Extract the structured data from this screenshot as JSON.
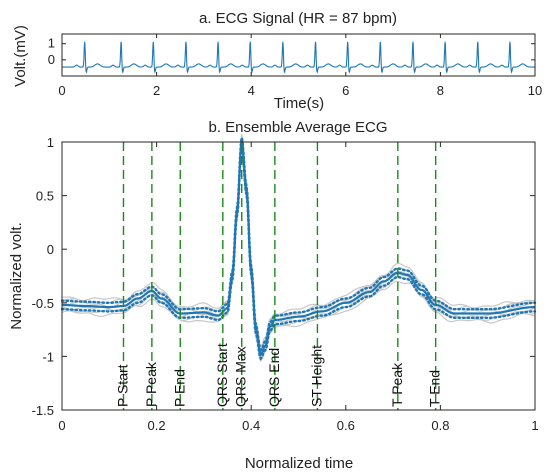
{
  "chart_data": [
    {
      "type": "line",
      "title": "a. ECG Signal (HR = 87 bpm)",
      "xlabel": "Time(s)",
      "ylabel": "Volt.(mV)",
      "xlim": [
        0,
        10
      ],
      "ylim": [
        -1,
        1.6
      ],
      "xticks": [
        "0",
        "2",
        "4",
        "6",
        "8",
        "10"
      ],
      "yticks": [
        "0",
        "1"
      ],
      "x_tick_values": [
        0,
        2,
        4,
        6,
        8,
        10
      ],
      "y_tick_values": [
        0,
        1
      ],
      "series": [
        {
          "color": "#1f77b4",
          "baseline_mV": -0.45,
          "r_peak_mV": 1.15,
          "r_peak_times_s": [
            0.48,
            1.25,
            1.93,
            2.62,
            3.3,
            3.98,
            4.67,
            5.36,
            6.04,
            6.73,
            7.42,
            8.1,
            8.79,
            9.47
          ]
        }
      ]
    },
    {
      "type": "line",
      "title": "b. Ensemble Average ECG",
      "xlabel": "Normalized time",
      "ylabel": "Normalized volt.",
      "xlim": [
        0,
        1
      ],
      "ylim": [
        -1.5,
        1
      ],
      "xticks": [
        "0",
        "0.2",
        "0.4",
        "0.6",
        "0.8",
        "1"
      ],
      "yticks": [
        "-1.5",
        "-1",
        "-0.5",
        "0",
        "0.5",
        "1"
      ],
      "x_tick_values": [
        0,
        0.2,
        0.4,
        0.6,
        0.8,
        1
      ],
      "y_tick_values": [
        -1.5,
        -1,
        -0.5,
        0,
        0.5,
        1
      ],
      "series": [
        {
          "color": "#1f77b4",
          "band_color": "#c8c8c8",
          "x": [
            0,
            0.05,
            0.1,
            0.13,
            0.16,
            0.19,
            0.21,
            0.25,
            0.3,
            0.33,
            0.35,
            0.36,
            0.37,
            0.38,
            0.39,
            0.4,
            0.41,
            0.42,
            0.43,
            0.44,
            0.45,
            0.5,
            0.55,
            0.6,
            0.65,
            0.68,
            0.71,
            0.73,
            0.76,
            0.79,
            0.83,
            0.9,
            1
          ],
          "y": [
            -0.52,
            -0.53,
            -0.54,
            -0.53,
            -0.46,
            -0.39,
            -0.46,
            -0.6,
            -0.59,
            -0.62,
            -0.55,
            -0.25,
            0.35,
            1.0,
            0.55,
            -0.2,
            -0.75,
            -0.98,
            -0.9,
            -0.72,
            -0.66,
            -0.63,
            -0.58,
            -0.5,
            -0.4,
            -0.3,
            -0.22,
            -0.24,
            -0.38,
            -0.52,
            -0.6,
            -0.6,
            -0.54
          ]
        }
      ],
      "annotations": [
        {
          "label": "P Start",
          "x": 0.13
        },
        {
          "label": "P Peak",
          "x": 0.19
        },
        {
          "label": "P End",
          "x": 0.25
        },
        {
          "label": "QRS Start",
          "x": 0.34
        },
        {
          "label": "QRS Max",
          "x": 0.38
        },
        {
          "label": "QRS End",
          "x": 0.45
        },
        {
          "label": "ST Height",
          "x": 0.54
        },
        {
          "label": "T Peak",
          "x": 0.71
        },
        {
          "label": "T End",
          "x": 0.79
        }
      ]
    }
  ]
}
